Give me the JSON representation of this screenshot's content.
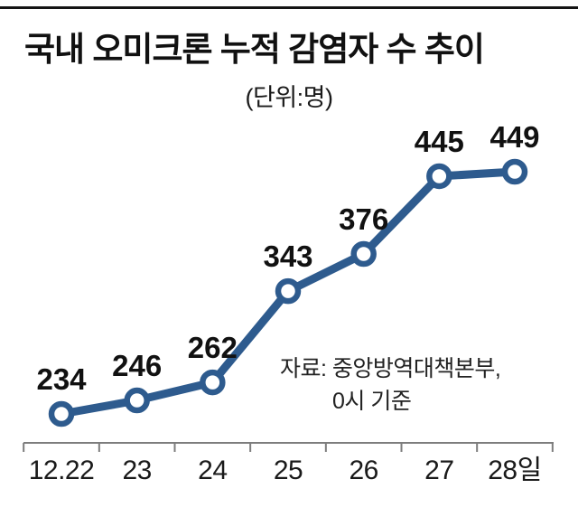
{
  "page": {
    "title": "국내 오미크론 누적 감염자 수 추이",
    "unit_label": "(단위:명)",
    "source_line1": "자료: 중앙방역대책본부,",
    "source_line2": "0시 기준"
  },
  "chart_data": {
    "type": "line",
    "title": "국내 오미크론 누적 감염자 수 추이",
    "unit": "명",
    "categories": [
      "12.22",
      "23",
      "24",
      "25",
      "26",
      "27",
      "28일"
    ],
    "values": [
      234,
      246,
      262,
      343,
      376,
      445,
      449
    ],
    "series_name": "누적 감염자 수",
    "source": "자료: 중앙방역대책본부, 0시 기준",
    "line_color": "#2e5b8e",
    "marker_fill": "#ffffff",
    "value_label_color": "#111111",
    "axis_color": "#7d7d7d",
    "tick_label_color": "#1a1a1a",
    "grid": false,
    "legend": "none",
    "ylim": [
      234,
      449
    ]
  }
}
